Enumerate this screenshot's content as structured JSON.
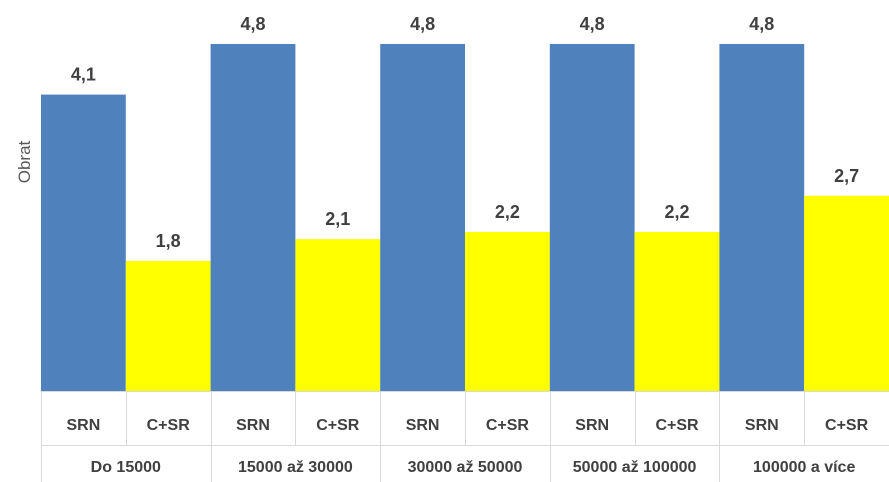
{
  "chart_data": {
    "type": "bar",
    "ylabel": "Obrat",
    "ylim": [
      0,
      5.0
    ],
    "grid": false,
    "legend": "none",
    "groups": [
      {
        "label": "Do 15000",
        "bars": [
          {
            "label": "SRN",
            "value": 4.1,
            "display": "4,1"
          },
          {
            "label": "C+SR",
            "value": 1.8,
            "display": "1,8"
          }
        ]
      },
      {
        "label": "15000 až 30000",
        "bars": [
          {
            "label": "SRN",
            "value": 4.8,
            "display": "4,8"
          },
          {
            "label": "C+SR",
            "value": 2.1,
            "display": "2,1"
          }
        ]
      },
      {
        "label": "30000 až 50000",
        "bars": [
          {
            "label": "SRN",
            "value": 4.8,
            "display": "4,8"
          },
          {
            "label": "C+SR",
            "value": 2.2,
            "display": "2,2"
          }
        ]
      },
      {
        "label": "50000 až 100000",
        "bars": [
          {
            "label": "SRN",
            "value": 4.8,
            "display": "4,8"
          },
          {
            "label": "C+SR",
            "value": 2.2,
            "display": "2,2"
          }
        ]
      },
      {
        "label": "100000 a více",
        "bars": [
          {
            "label": "SRN",
            "value": 4.8,
            "display": "4,8"
          },
          {
            "label": "C+SR",
            "value": 2.7,
            "display": "2,7"
          }
        ]
      }
    ],
    "colors": {
      "SRN": "#4f81bd",
      "C+SR": "#ffff00"
    }
  }
}
